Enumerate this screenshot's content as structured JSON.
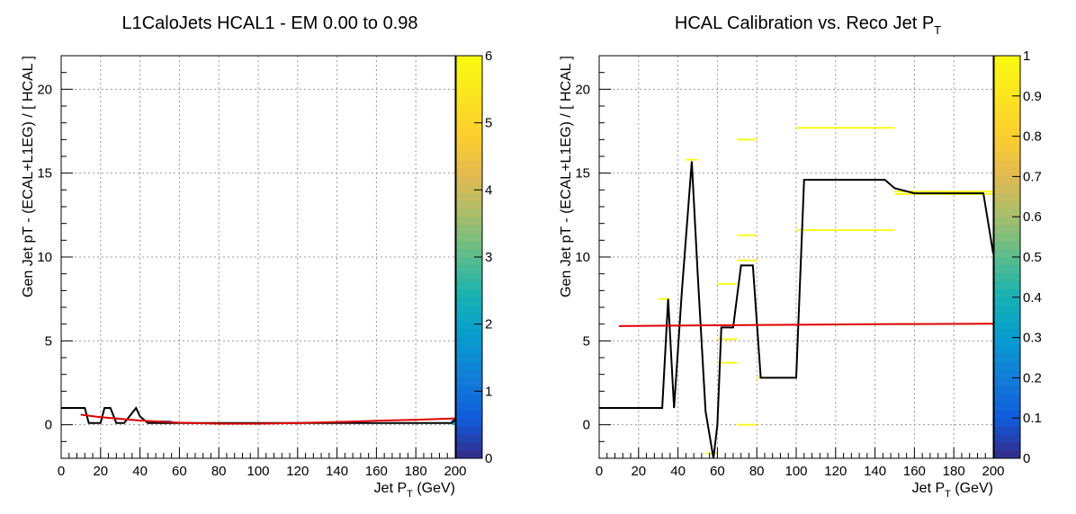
{
  "chart_data": [
    {
      "type": "heatmap",
      "title": "L1CaloJets HCAL1 - EM 0.00 to 0.98",
      "title_sub": "",
      "xlabel": "Jet P",
      "xlabel_sub": "T",
      "xlabel_unit": "(GeV)",
      "ylabel": "Gen Jet pT - (ECAL+L1EG) / [ HCAL ]",
      "xlim": [
        0,
        200
      ],
      "ylim": [
        -2,
        22
      ],
      "x_ticks": [
        0,
        20,
        40,
        60,
        80,
        100,
        120,
        140,
        160,
        180,
        200
      ],
      "y_ticks": [
        0,
        5,
        10,
        15,
        20
      ],
      "grid": true,
      "colorbar": {
        "min": 0,
        "max": 6,
        "ticks": [
          0,
          1,
          2,
          3,
          4,
          5,
          6
        ]
      },
      "series": [
        {
          "color": "#000000",
          "x": [
            0,
            12,
            14,
            20,
            22,
            25,
            28,
            32,
            38,
            40,
            44,
            50,
            56,
            60,
            80,
            100,
            120,
            140,
            160,
            180,
            198,
            200
          ],
          "y": [
            1.0,
            1.0,
            0.1,
            0.1,
            1.0,
            1.0,
            0.1,
            0.1,
            1.0,
            0.5,
            0.1,
            0.1,
            0.1,
            0.1,
            0.1,
            0.1,
            0.1,
            0.1,
            0.1,
            0.1,
            0.1,
            0.3
          ]
        },
        {
          "color": "#e00000",
          "x": [
            10,
            20,
            40,
            60,
            80,
            100,
            120,
            140,
            160,
            180,
            200
          ],
          "y": [
            0.6,
            0.45,
            0.25,
            0.12,
            0.06,
            0.06,
            0.1,
            0.16,
            0.24,
            0.3,
            0.38
          ]
        }
      ],
      "cells": [
        {
          "x0": 50,
          "x1": 56,
          "y0": 0.05,
          "y1": 0.25,
          "value": 1
        },
        {
          "x0": 198,
          "x1": 200,
          "y0": 0.0,
          "y1": 0.3,
          "value": 2
        }
      ]
    },
    {
      "type": "heatmap",
      "title": "HCAL Calibration vs. Reco Jet P",
      "title_sub": "T",
      "xlabel": "Jet P",
      "xlabel_sub": "T",
      "xlabel_unit": "(GeV)",
      "ylabel": "Gen Jet pT - (ECAL+L1EG) / [ HCAL ]",
      "xlim": [
        0,
        200
      ],
      "ylim": [
        -2,
        22
      ],
      "x_ticks": [
        0,
        20,
        40,
        60,
        80,
        100,
        120,
        140,
        160,
        180,
        200
      ],
      "y_ticks": [
        0,
        5,
        10,
        15,
        20
      ],
      "grid": true,
      "colorbar": {
        "min": 0,
        "max": 1,
        "ticks": [
          0,
          0.1,
          0.2,
          0.3,
          0.4,
          0.5,
          0.6,
          0.7,
          0.8,
          0.9,
          1
        ]
      },
      "series": [
        {
          "color": "#000000",
          "x": [
            0,
            30,
            32,
            35,
            38,
            42,
            47,
            50,
            54,
            58,
            60,
            62,
            68,
            72,
            78,
            82,
            88,
            98,
            100,
            104,
            110,
            120,
            140,
            145,
            150,
            160,
            180,
            195,
            200
          ],
          "y": [
            1.0,
            1.0,
            1.0,
            7.5,
            1.0,
            8.0,
            15.7,
            9.0,
            0.8,
            -2.0,
            0.0,
            5.8,
            5.8,
            9.5,
            9.5,
            2.8,
            2.8,
            2.8,
            2.8,
            14.6,
            14.6,
            14.6,
            14.6,
            14.6,
            14.1,
            13.8,
            13.8,
            13.8,
            10.2
          ]
        },
        {
          "color": "#e00000",
          "x": [
            10,
            50,
            100,
            150,
            200
          ],
          "y": [
            5.88,
            5.92,
            5.96,
            6.0,
            6.02
          ]
        }
      ],
      "cells": [
        {
          "x0": 30,
          "x1": 36,
          "y0": 7.45,
          "y1": 7.55,
          "value": 1
        },
        {
          "x0": 44,
          "x1": 50,
          "y0": 15.75,
          "y1": 15.85,
          "value": 1
        },
        {
          "x0": 60,
          "x1": 70,
          "y0": 8.35,
          "y1": 8.45,
          "value": 1
        },
        {
          "x0": 60,
          "x1": 70,
          "y0": 5.05,
          "y1": 5.15,
          "value": 1
        },
        {
          "x0": 60,
          "x1": 70,
          "y0": 3.65,
          "y1": 3.75,
          "value": 1
        },
        {
          "x0": 70,
          "x1": 80,
          "y0": 16.95,
          "y1": 17.05,
          "value": 1
        },
        {
          "x0": 70,
          "x1": 80,
          "y0": 11.25,
          "y1": 11.35,
          "value": 1
        },
        {
          "x0": 70,
          "x1": 80,
          "y0": 9.75,
          "y1": 9.85,
          "value": 1
        },
        {
          "x0": 70,
          "x1": 80,
          "y0": -0.05,
          "y1": 0.05,
          "value": 1
        },
        {
          "x0": 54,
          "x1": 60,
          "y0": -1.75,
          "y1": -1.65,
          "value": 1
        },
        {
          "x0": 80,
          "x1": 90,
          "y0": 2.75,
          "y1": 2.85,
          "value": 1
        },
        {
          "x0": 100,
          "x1": 150,
          "y0": 17.65,
          "y1": 17.75,
          "value": 1
        },
        {
          "x0": 100,
          "x1": 150,
          "y0": 11.55,
          "y1": 11.65,
          "value": 1
        },
        {
          "x0": 150,
          "x1": 200,
          "y0": 13.85,
          "y1": 13.95,
          "value": 1
        },
        {
          "x0": 150,
          "x1": 200,
          "y0": 13.7,
          "y1": 13.8,
          "value": 1
        }
      ]
    }
  ]
}
